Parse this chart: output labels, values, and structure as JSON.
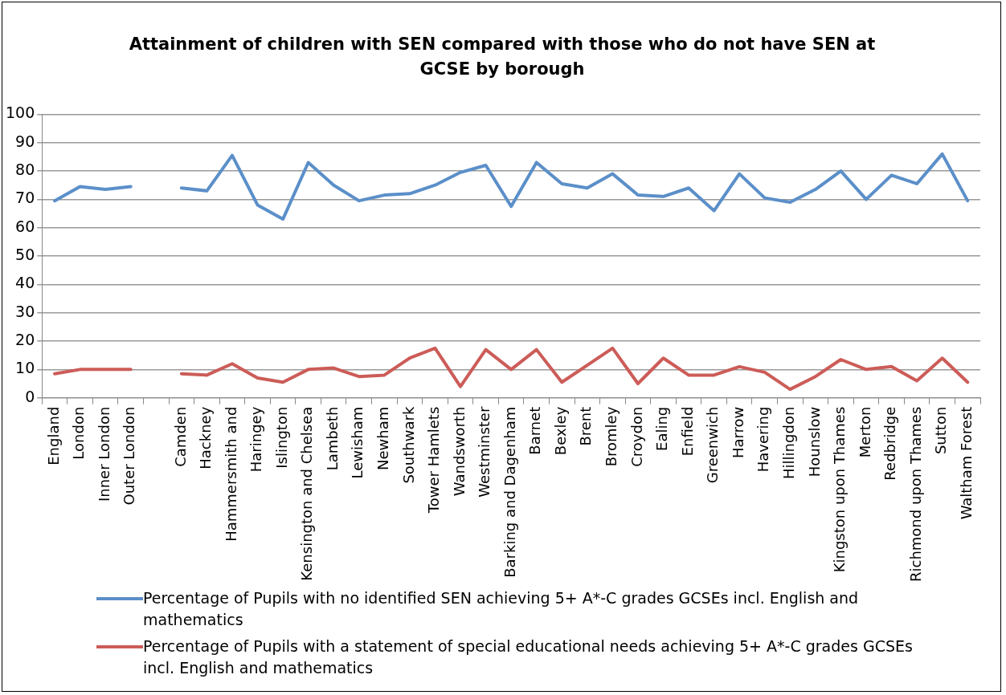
{
  "chart_data": {
    "type": "line",
    "title": "Attainment of children with SEN compared with those who do not have SEN at GCSE by borough",
    "categories": [
      "England",
      "London",
      "Inner London",
      "Outer London",
      null,
      "Camden",
      "Hackney",
      "Hammersmith and",
      "Haringey",
      "Islington",
      "Kensington and Chelsea",
      "Lambeth",
      "Lewisham",
      "Newham",
      "Southwark",
      "Tower Hamlets",
      "Wandsworth",
      "Westminster",
      "Barking and Dagenham",
      "Barnet",
      "Bexley",
      "Brent",
      "Bromley",
      "Croydon",
      "Ealing",
      "Enfield",
      "Greenwich",
      "Harrow",
      "Havering",
      "Hillingdon",
      "Hounslow",
      "Kingston upon Thames",
      "Merton",
      "Redbridge",
      "Richmond upon Thames",
      "Sutton",
      "Waltham Forest"
    ],
    "series": [
      {
        "name": "Percentage of Pupils with no identified SEN achieving 5+ A*-C grades GCSEs incl. English and mathematics",
        "color": "#5b8fc9",
        "values": [
          69.5,
          74.5,
          73.5,
          74.5,
          null,
          74,
          73,
          85.5,
          68,
          63,
          83,
          75,
          69.5,
          71.5,
          72,
          75,
          79.5,
          82,
          67.5,
          83,
          75.5,
          74,
          79,
          71.5,
          71,
          74,
          66,
          79,
          70.5,
          69,
          73.5,
          80,
          70,
          78.5,
          75.5,
          86,
          69.5
        ]
      },
      {
        "name": "Percentage of Pupils with a statement of special educational needs achieving 5+ A*-C grades GCSEs incl. English and mathematics",
        "color": "#cc5c58",
        "values": [
          8.5,
          10,
          10,
          10,
          null,
          8.5,
          8,
          12,
          7,
          5.5,
          10,
          10.5,
          7.5,
          8,
          14,
          17.5,
          4,
          17,
          10,
          17,
          5.5,
          11.5,
          17.5,
          5,
          14,
          8,
          8,
          11,
          9,
          3,
          7.5,
          13.5,
          10,
          11,
          6,
          14,
          5.5
        ]
      }
    ],
    "ylim": [
      0,
      100
    ],
    "yticks": [
      0,
      10,
      20,
      30,
      40,
      50,
      60,
      70,
      80,
      90,
      100
    ],
    "grid": "y",
    "legend": "bottom",
    "marker": "none",
    "line_style": "solid"
  }
}
